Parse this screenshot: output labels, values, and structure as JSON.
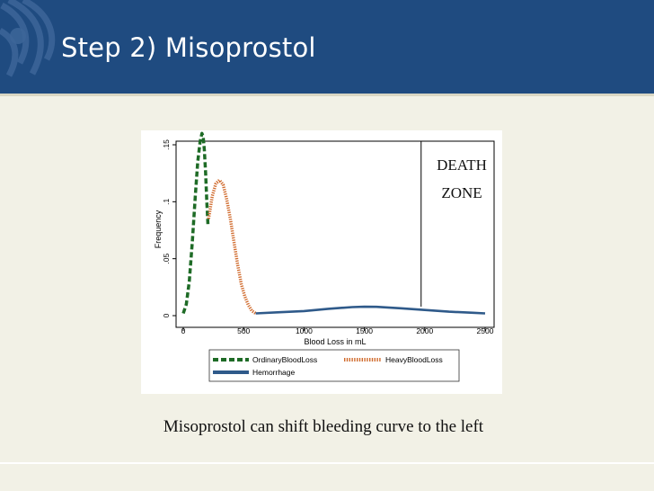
{
  "slide": {
    "title": "Step 2) Misoprostol",
    "caption": "Misoprostol can shift bleeding curve to the left"
  },
  "colors": {
    "header": "#1f4b80",
    "background": "#f2f1e6",
    "ordinary": "#1e6b26",
    "heavy": "#d06a2c",
    "hemorrhage": "#2f5a8a"
  },
  "chart_data": {
    "type": "line",
    "title": "",
    "xlabel": "Blood Loss in mL",
    "ylabel": "Frequency",
    "xlim": [
      0,
      2500
    ],
    "ylim": [
      0,
      0.15
    ],
    "x_ticks": [
      0,
      500,
      1000,
      1500,
      2000,
      2500
    ],
    "x_tick_labels": [
      "0",
      "500",
      "1000",
      "1500",
      "2000",
      "2500"
    ],
    "y_ticks": [
      0,
      0.05,
      0.1,
      0.15
    ],
    "y_tick_labels": [
      "0",
      ".05",
      ".1",
      ".15"
    ],
    "grid": false,
    "legend_position": "bottom",
    "series": [
      {
        "name": "OrdinaryBloodLoss",
        "style": "dashed",
        "x": [
          0,
          25,
          50,
          75,
          100,
          120,
          140,
          155,
          165,
          175,
          185,
          195,
          205
        ],
        "y": [
          0.002,
          0.01,
          0.03,
          0.065,
          0.105,
          0.135,
          0.153,
          0.16,
          0.157,
          0.145,
          0.125,
          0.1,
          0.078
        ]
      },
      {
        "name": "HeavyBloodLoss",
        "style": "dotted",
        "x": [
          210,
          240,
          270,
          300,
          330,
          360,
          390,
          420,
          450,
          480,
          510,
          540,
          570,
          600
        ],
        "y": [
          0.085,
          0.105,
          0.116,
          0.119,
          0.115,
          0.102,
          0.085,
          0.065,
          0.045,
          0.028,
          0.017,
          0.009,
          0.004,
          0.002
        ]
      },
      {
        "name": "Hemorrhage",
        "style": "solid",
        "x": [
          600,
          800,
          1000,
          1200,
          1400,
          1500,
          1600,
          1800,
          2000,
          2200,
          2400,
          2500
        ],
        "y": [
          0.002,
          0.003,
          0.004,
          0.006,
          0.0075,
          0.0078,
          0.0077,
          0.0065,
          0.005,
          0.0035,
          0.0025,
          0.002
        ]
      }
    ],
    "annotation": {
      "lines": [
        "DEATH",
        "ZONE"
      ],
      "x_marker": 1970
    }
  }
}
